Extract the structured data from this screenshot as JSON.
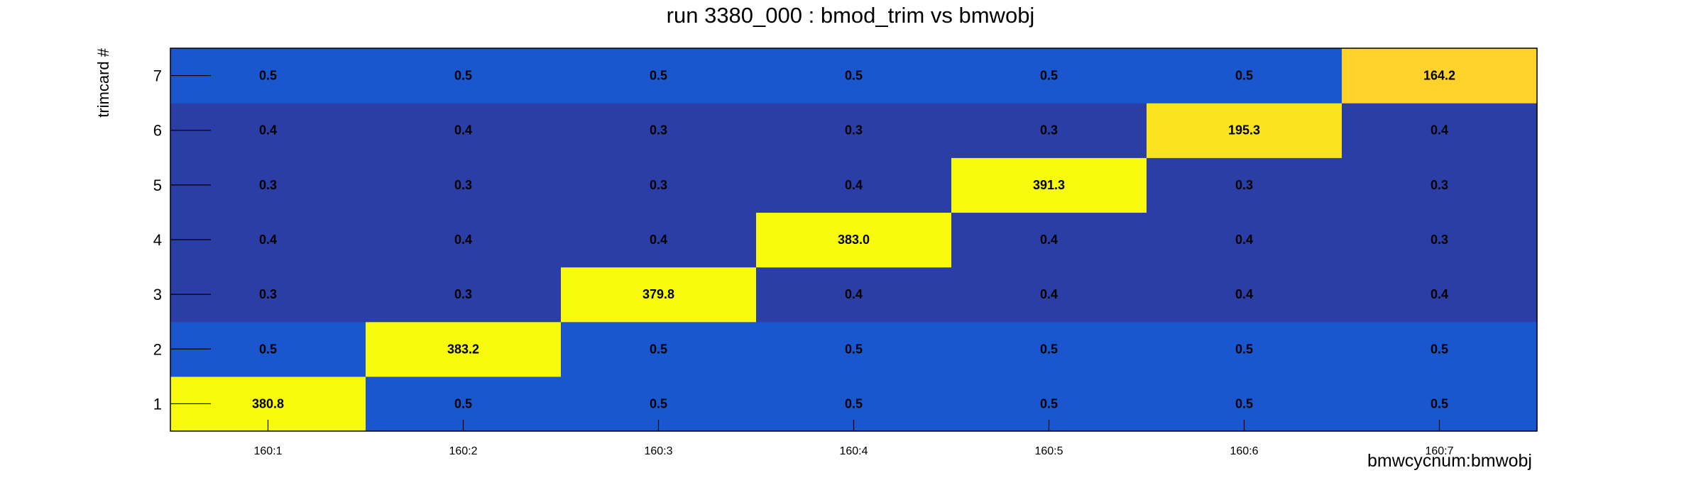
{
  "chart_data": {
    "type": "heatmap",
    "title": "run 3380_000 : bmod_trim vs bmwobj",
    "xlabel": "bmwcycnum:bmwobj",
    "ylabel": "trimcard #",
    "x_categories": [
      "160:1",
      "160:2",
      "160:3",
      "160:4",
      "160:5",
      "160:6",
      "160:7"
    ],
    "y_categories": [
      "1",
      "2",
      "3",
      "4",
      "5",
      "6",
      "7"
    ],
    "values": [
      [
        380.8,
        0.5,
        0.5,
        0.5,
        0.5,
        0.5,
        0.5
      ],
      [
        0.5,
        383.2,
        0.5,
        0.5,
        0.5,
        0.5,
        0.5
      ],
      [
        0.3,
        0.3,
        379.8,
        0.4,
        0.4,
        0.4,
        0.4
      ],
      [
        0.4,
        0.4,
        0.4,
        383.0,
        0.4,
        0.4,
        0.3
      ],
      [
        0.3,
        0.3,
        0.3,
        0.4,
        391.3,
        0.3,
        0.3
      ],
      [
        0.4,
        0.4,
        0.3,
        0.3,
        0.3,
        195.3,
        0.4
      ],
      [
        0.5,
        0.5,
        0.5,
        0.5,
        0.5,
        0.5,
        164.2
      ]
    ],
    "value_format": "0.1f",
    "grid": false,
    "colors": {
      "low": "#2a3ea6",
      "low_mid": "#1a56cd",
      "mid_high": "#fdd22a",
      "mid_high2": "#f9e41e",
      "high": "#f8fa0d"
    }
  }
}
